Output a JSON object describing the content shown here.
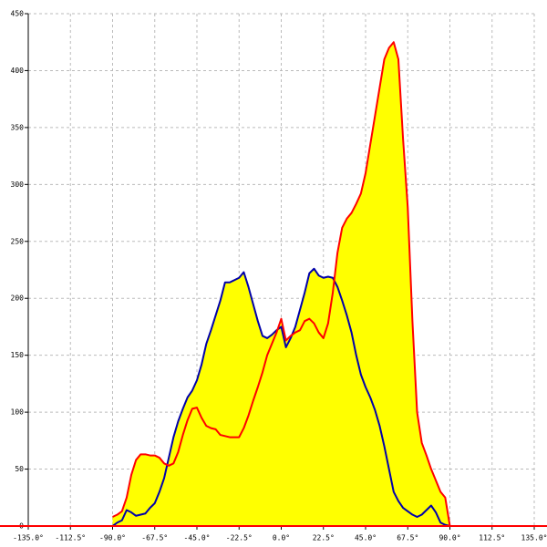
{
  "chart_data": {
    "type": "area",
    "x": [
      -90,
      -87.5,
      -85,
      -82.5,
      -80,
      -77.5,
      -75,
      -72.5,
      -70,
      -67.5,
      -65,
      -62.5,
      -60,
      -57.5,
      -55,
      -52.5,
      -50,
      -47.5,
      -45,
      -42.5,
      -40,
      -37.5,
      -35,
      -32.5,
      -30,
      -27.5,
      -25,
      -22.5,
      -20,
      -17.5,
      -15,
      -12.5,
      -10,
      -7.5,
      -5,
      -2.5,
      0,
      2.5,
      5,
      7.5,
      10,
      12.5,
      15,
      17.5,
      20,
      22.5,
      25,
      27.5,
      30,
      32.5,
      35,
      37.5,
      40,
      42.5,
      45,
      47.5,
      50,
      52.5,
      55,
      57.5,
      60,
      62.5,
      65,
      67.5,
      70,
      72.5,
      75,
      77.5,
      80,
      82.5,
      85,
      87.5,
      90
    ],
    "series": [
      {
        "color": "#0000aa",
        "values": [
          0,
          3,
          5,
          14,
          12,
          9,
          10,
          11,
          16,
          20,
          30,
          42,
          60,
          78,
          92,
          103,
          113,
          119,
          128,
          142,
          160,
          172,
          185,
          198,
          214,
          214,
          216,
          218,
          223,
          210,
          195,
          180,
          167,
          165,
          168,
          172,
          175,
          157,
          165,
          175,
          190,
          205,
          222,
          226,
          220,
          218,
          219,
          218,
          210,
          198,
          185,
          170,
          150,
          133,
          122,
          113,
          102,
          88,
          70,
          50,
          30,
          22,
          16,
          13,
          10,
          8,
          10,
          14,
          18,
          12,
          3,
          1,
          0
        ]
      },
      {
        "color": "#ff0000",
        "values": [
          8,
          10,
          13,
          25,
          45,
          58,
          63,
          63,
          62,
          62,
          60,
          55,
          53,
          55,
          65,
          80,
          93,
          103,
          104,
          95,
          88,
          86,
          85,
          80,
          79,
          78,
          78,
          78,
          86,
          97,
          110,
          122,
          135,
          150,
          160,
          170,
          182,
          163,
          167,
          170,
          172,
          180,
          182,
          178,
          170,
          165,
          178,
          205,
          240,
          262,
          270,
          275,
          283,
          292,
          310,
          335,
          360,
          385,
          410,
          420,
          425,
          410,
          340,
          280,
          180,
          100,
          73,
          62,
          50,
          40,
          30,
          25,
          0
        ]
      }
    ],
    "fill_color": "#ffff00",
    "xlim": [
      -135,
      135
    ],
    "ylim": [
      0,
      450
    ],
    "xticks": [
      {
        "value": -135,
        "label": "-135.0°"
      },
      {
        "value": -112.5,
        "label": "-112.5°"
      },
      {
        "value": -90,
        "label": "-90.0°"
      },
      {
        "value": -67.5,
        "label": "-67.5°"
      },
      {
        "value": -45,
        "label": "-45.0°"
      },
      {
        "value": -22.5,
        "label": "-22.5°"
      },
      {
        "value": 0,
        "label": "0.0°"
      },
      {
        "value": 22.5,
        "label": "22.5°"
      },
      {
        "value": 45,
        "label": "45.0°"
      },
      {
        "value": 67.5,
        "label": "67.5°"
      },
      {
        "value": 90,
        "label": "90.0°"
      },
      {
        "value": 112.5,
        "label": "112.5°"
      },
      {
        "value": 135,
        "label": "135.0°"
      }
    ],
    "yticks": [
      0,
      50,
      100,
      150,
      200,
      250,
      300,
      350,
      400,
      450
    ],
    "grid": true
  }
}
